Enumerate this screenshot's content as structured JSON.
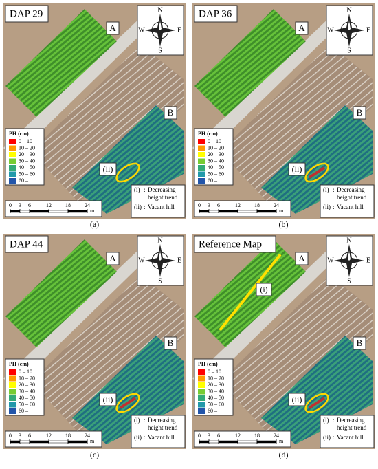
{
  "panels": [
    {
      "title": "DAP 29",
      "caption": "(a)"
    },
    {
      "title": "DAP 36",
      "caption": "(b)"
    },
    {
      "title": "DAP 44",
      "caption": "(c)"
    },
    {
      "title": "Reference Map",
      "caption": "(d)",
      "trend_label": "(i)"
    }
  ],
  "compass": {
    "n": "N",
    "s": "S",
    "e": "E",
    "w": "W"
  },
  "field_labels": {
    "a": "A",
    "b": "B",
    "vacant": "(ii)"
  },
  "legend": {
    "title": "PH (cm)",
    "items": [
      {
        "label": "0 – 10",
        "color": "#ff0000"
      },
      {
        "label": "10 – 20",
        "color": "#ff9900"
      },
      {
        "label": "20 – 30",
        "color": "#ffff00"
      },
      {
        "label": "30 – 40",
        "color": "#77cc33"
      },
      {
        "label": "40 – 50",
        "color": "#33aa77"
      },
      {
        "label": "50 – 60",
        "color": "#2299aa"
      },
      {
        "label": "60 –",
        "color": "#2255aa"
      }
    ]
  },
  "scale": {
    "ticks": [
      0,
      3,
      6,
      12,
      18,
      24
    ],
    "unit": "m"
  },
  "notes": [
    {
      "key": "(i)",
      "sep": ":",
      "text": [
        "Decreasing",
        "height trend"
      ]
    },
    {
      "key": "(ii)",
      "sep": ":",
      "text": [
        "Vacant hill"
      ]
    }
  ]
}
